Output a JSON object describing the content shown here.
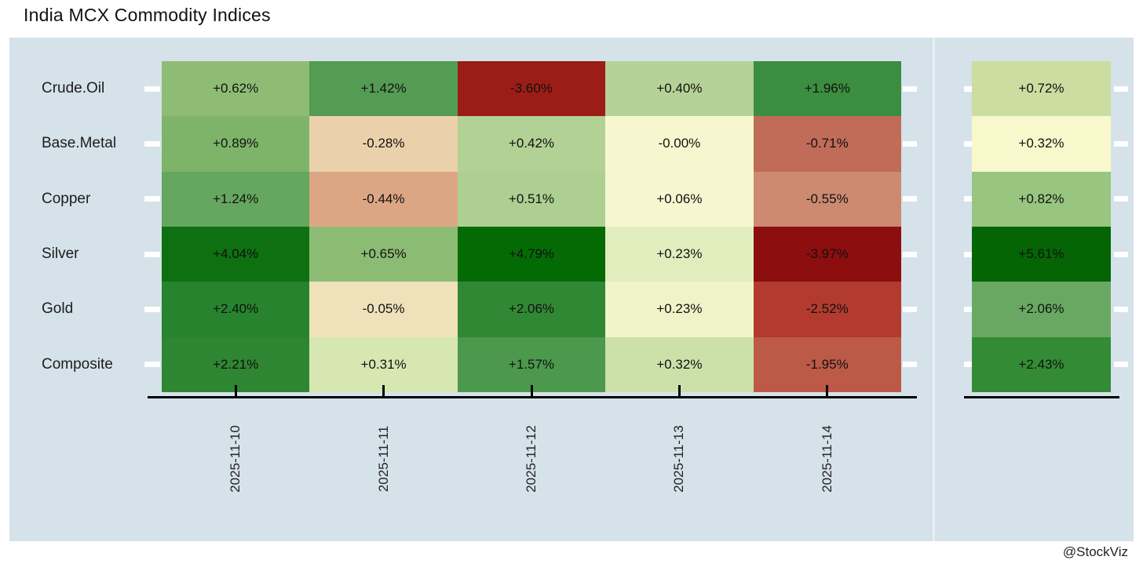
{
  "title": "India MCX Commodity Indices",
  "watermark": "@StockViz",
  "chart_data": {
    "type": "heatmap",
    "title": "India MCX Commodity Indices",
    "colormap": "RdYlGn",
    "panel_background": "#d5e2ea",
    "rows": [
      "Crude.Oil",
      "Base.Metal",
      "Copper",
      "Silver",
      "Gold",
      "Composite"
    ],
    "columns": [
      "2025-11-10",
      "2025-11-11",
      "2025-11-12",
      "2025-11-13",
      "2025-11-14"
    ],
    "series": [
      {
        "name": "Crude.Oil",
        "values": [
          0.62,
          1.42,
          -3.6,
          0.4,
          1.96
        ],
        "labels": [
          "+0.62%",
          "+1.42%",
          "-3.60%",
          "+0.40%",
          "+1.96%"
        ],
        "colors": [
          "#8fbc75",
          "#549c53",
          "#9c1d16",
          "#b4d297",
          "#3b8e3f"
        ],
        "week_value": 0.72,
        "week_label": "+0.72%",
        "week_color": "#cbdda0"
      },
      {
        "name": "Base.Metal",
        "values": [
          0.89,
          -0.28,
          0.42,
          -0.0,
          -0.71
        ],
        "labels": [
          "+0.89%",
          "-0.28%",
          "+0.42%",
          "-0.00%",
          "-0.71%"
        ],
        "colors": [
          "#7db46a",
          "#ebd1ab",
          "#b2d295",
          "#f7f7cf",
          "#c06c58"
        ],
        "week_value": 0.32,
        "week_label": "+0.32%",
        "week_color": "#f8f8cc"
      },
      {
        "name": "Copper",
        "values": [
          1.24,
          -0.44,
          0.51,
          0.06,
          -0.55
        ],
        "labels": [
          "+1.24%",
          "-0.44%",
          "+0.51%",
          "+0.06%",
          "-0.55%"
        ],
        "colors": [
          "#66a75f",
          "#dca685",
          "#adcf92",
          "#f6f6d0",
          "#cd8a70"
        ],
        "week_value": 0.82,
        "week_label": "+0.82%",
        "week_color": "#98c580"
      },
      {
        "name": "Silver",
        "values": [
          4.04,
          0.65,
          4.79,
          0.23,
          -3.97
        ],
        "labels": [
          "+4.04%",
          "+0.65%",
          "+4.79%",
          "+0.23%",
          "-3.97%"
        ],
        "colors": [
          "#0e7011",
          "#8cbb74",
          "#046b04",
          "#e2edbe",
          "#8d0e0e"
        ],
        "week_value": 5.61,
        "week_label": "+5.61%",
        "week_color": "#056505"
      },
      {
        "name": "Gold",
        "values": [
          2.4,
          -0.05,
          2.06,
          0.23,
          -2.52
        ],
        "labels": [
          "+2.40%",
          "-0.05%",
          "+2.06%",
          "+0.23%",
          "-2.52%"
        ],
        "colors": [
          "#27832d",
          "#efe1ba",
          "#308834",
          "#f0f3c7",
          "#b23a2e"
        ],
        "week_value": 2.06,
        "week_label": "+2.06%",
        "week_color": "#69a863"
      },
      {
        "name": "Composite",
        "values": [
          2.21,
          0.31,
          1.57,
          0.32,
          -1.95
        ],
        "labels": [
          "+2.21%",
          "+0.31%",
          "+1.57%",
          "+0.32%",
          "-1.95%"
        ],
        "colors": [
          "#2e8532",
          "#d7e7b2",
          "#4c984c",
          "#cce0aa",
          "#bd5a47"
        ],
        "week_value": 2.43,
        "week_label": "+2.43%",
        "week_color": "#348b36"
      }
    ]
  }
}
